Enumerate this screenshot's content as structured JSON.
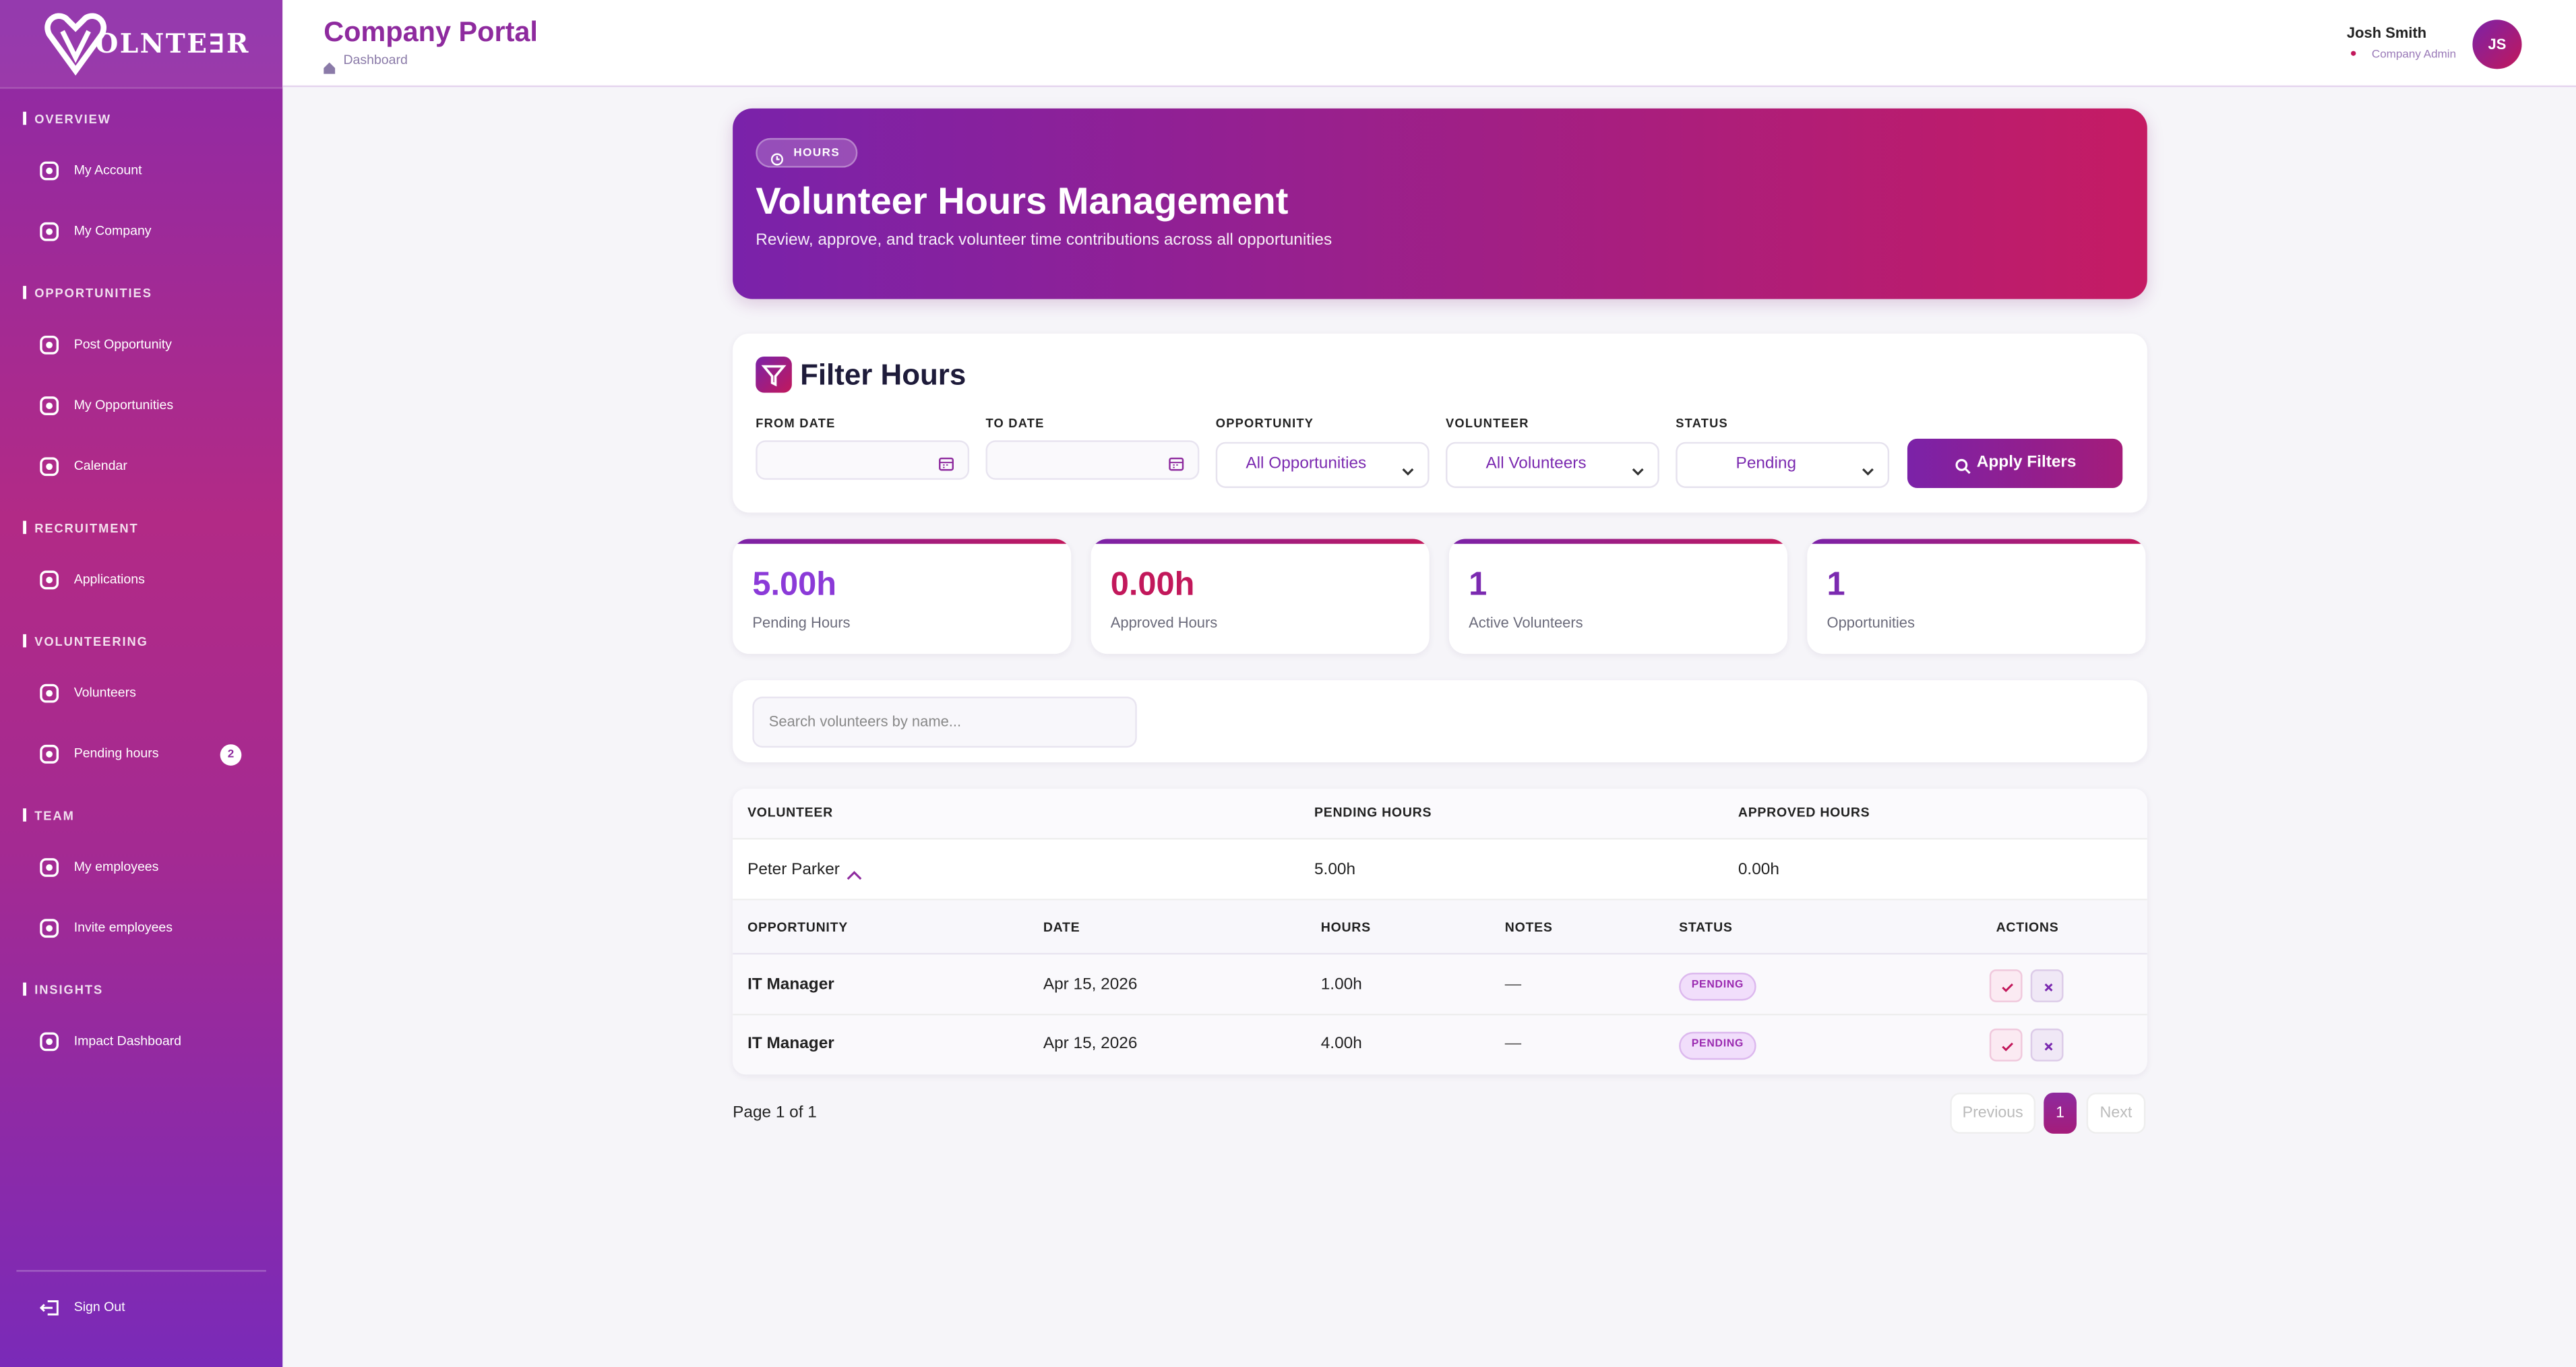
{
  "sidebar": {
    "logo": "OLNTE∃R",
    "sections": [
      {
        "title": "OVERVIEW",
        "items": [
          "My Account",
          "My Company"
        ]
      },
      {
        "title": "OPPORTUNITIES",
        "items": [
          "Post Opportunity",
          "My Opportunities",
          "Calendar"
        ]
      },
      {
        "title": "RECRUITMENT",
        "items": [
          "Applications"
        ]
      },
      {
        "title": "VOLUNTEERING",
        "items": [
          "Volunteers",
          "Pending hours"
        ]
      },
      {
        "title": "TEAM",
        "items": [
          "My employees",
          "Invite employees"
        ]
      },
      {
        "title": "INSIGHTS",
        "items": [
          "Impact Dashboard"
        ]
      }
    ],
    "pending_badge": 2,
    "sign_out": "Sign Out"
  },
  "header": {
    "title": "Company Portal",
    "breadcrumb": "Dashboard",
    "user_name": "Josh Smith",
    "user_role": "Company Admin",
    "initials": "JS"
  },
  "hero": {
    "badge": "HOURS",
    "title": "Volunteer Hours Management",
    "subtitle": "Review, approve, and track volunteer time contributions across all opportunities"
  },
  "filters": {
    "title": "Filter Hours",
    "fields": [
      {
        "label": "FROM DATE"
      },
      {
        "label": "TO DATE"
      },
      {
        "label": "OPPORTUNITY",
        "value": "All Opportunities"
      },
      {
        "label": "VOLUNTEER",
        "value": "All Volunteers"
      },
      {
        "label": "STATUS",
        "value": "Pending"
      }
    ],
    "button": "Apply Filters"
  },
  "stats": [
    {
      "value": "5.00h",
      "label": "Pending Hours"
    },
    {
      "value": "0.00h",
      "label": "Approved Hours"
    },
    {
      "value": "1",
      "label": "Active Volunteers"
    },
    {
      "value": "1",
      "label": "Opportunities"
    }
  ],
  "search": {
    "placeholder": "Search volunteers by name..."
  },
  "table": {
    "headers": [
      "VOLUNTEER",
      "PENDING HOURS",
      "APPROVED HOURS"
    ],
    "volunteer": {
      "name": "Peter Parker",
      "pending": "5.00h",
      "approved": "0.00h"
    },
    "sub_headers": [
      "OPPORTUNITY",
      "DATE",
      "HOURS",
      "NOTES",
      "STATUS",
      "ACTIONS"
    ],
    "rows": [
      [
        "IT Manager",
        "Apr 15, 2026",
        "1.00h",
        "—",
        "PENDING"
      ],
      [
        "IT Manager",
        "Apr 15, 2026",
        "4.00h",
        "—",
        "PENDING"
      ]
    ]
  },
  "pagination": {
    "summary": "Page 1 of 1",
    "previous": "Previous",
    "current": 1,
    "next": "Next"
  }
}
